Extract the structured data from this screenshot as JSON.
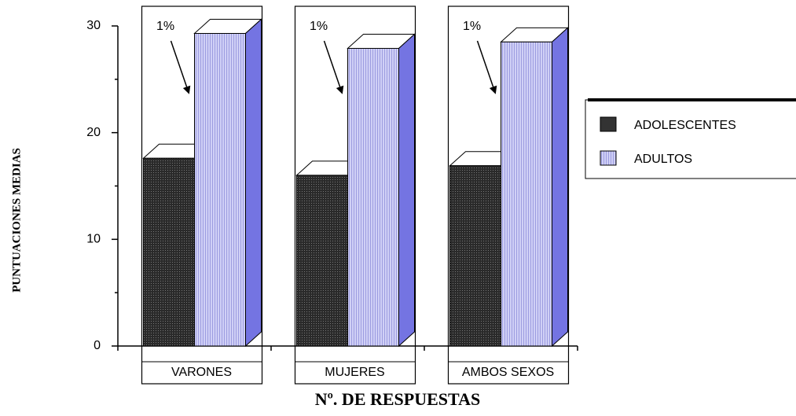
{
  "chart_data": {
    "type": "bar3d",
    "xlabel": "Nº. DE RESPUESTAS",
    "ylabel": "PUNTUACIONES MEDIAS",
    "categories": [
      "VARONES",
      "MUJERES",
      "AMBOS SEXOS"
    ],
    "series": [
      {
        "name": "ADOLESCENTES",
        "color": "#333333",
        "values": [
          17.6,
          16.0,
          16.9
        ]
      },
      {
        "name": "ADULTOS",
        "color": "#c8c8f2",
        "values": [
          29.3,
          27.9,
          28.5
        ]
      }
    ],
    "annotations": [
      "1%",
      "1%",
      "1%"
    ],
    "ylim": [
      0,
      30
    ],
    "yticks": [
      0,
      10,
      20,
      30
    ],
    "minor_yticks": [
      5,
      15,
      25
    ],
    "legend": "right"
  }
}
